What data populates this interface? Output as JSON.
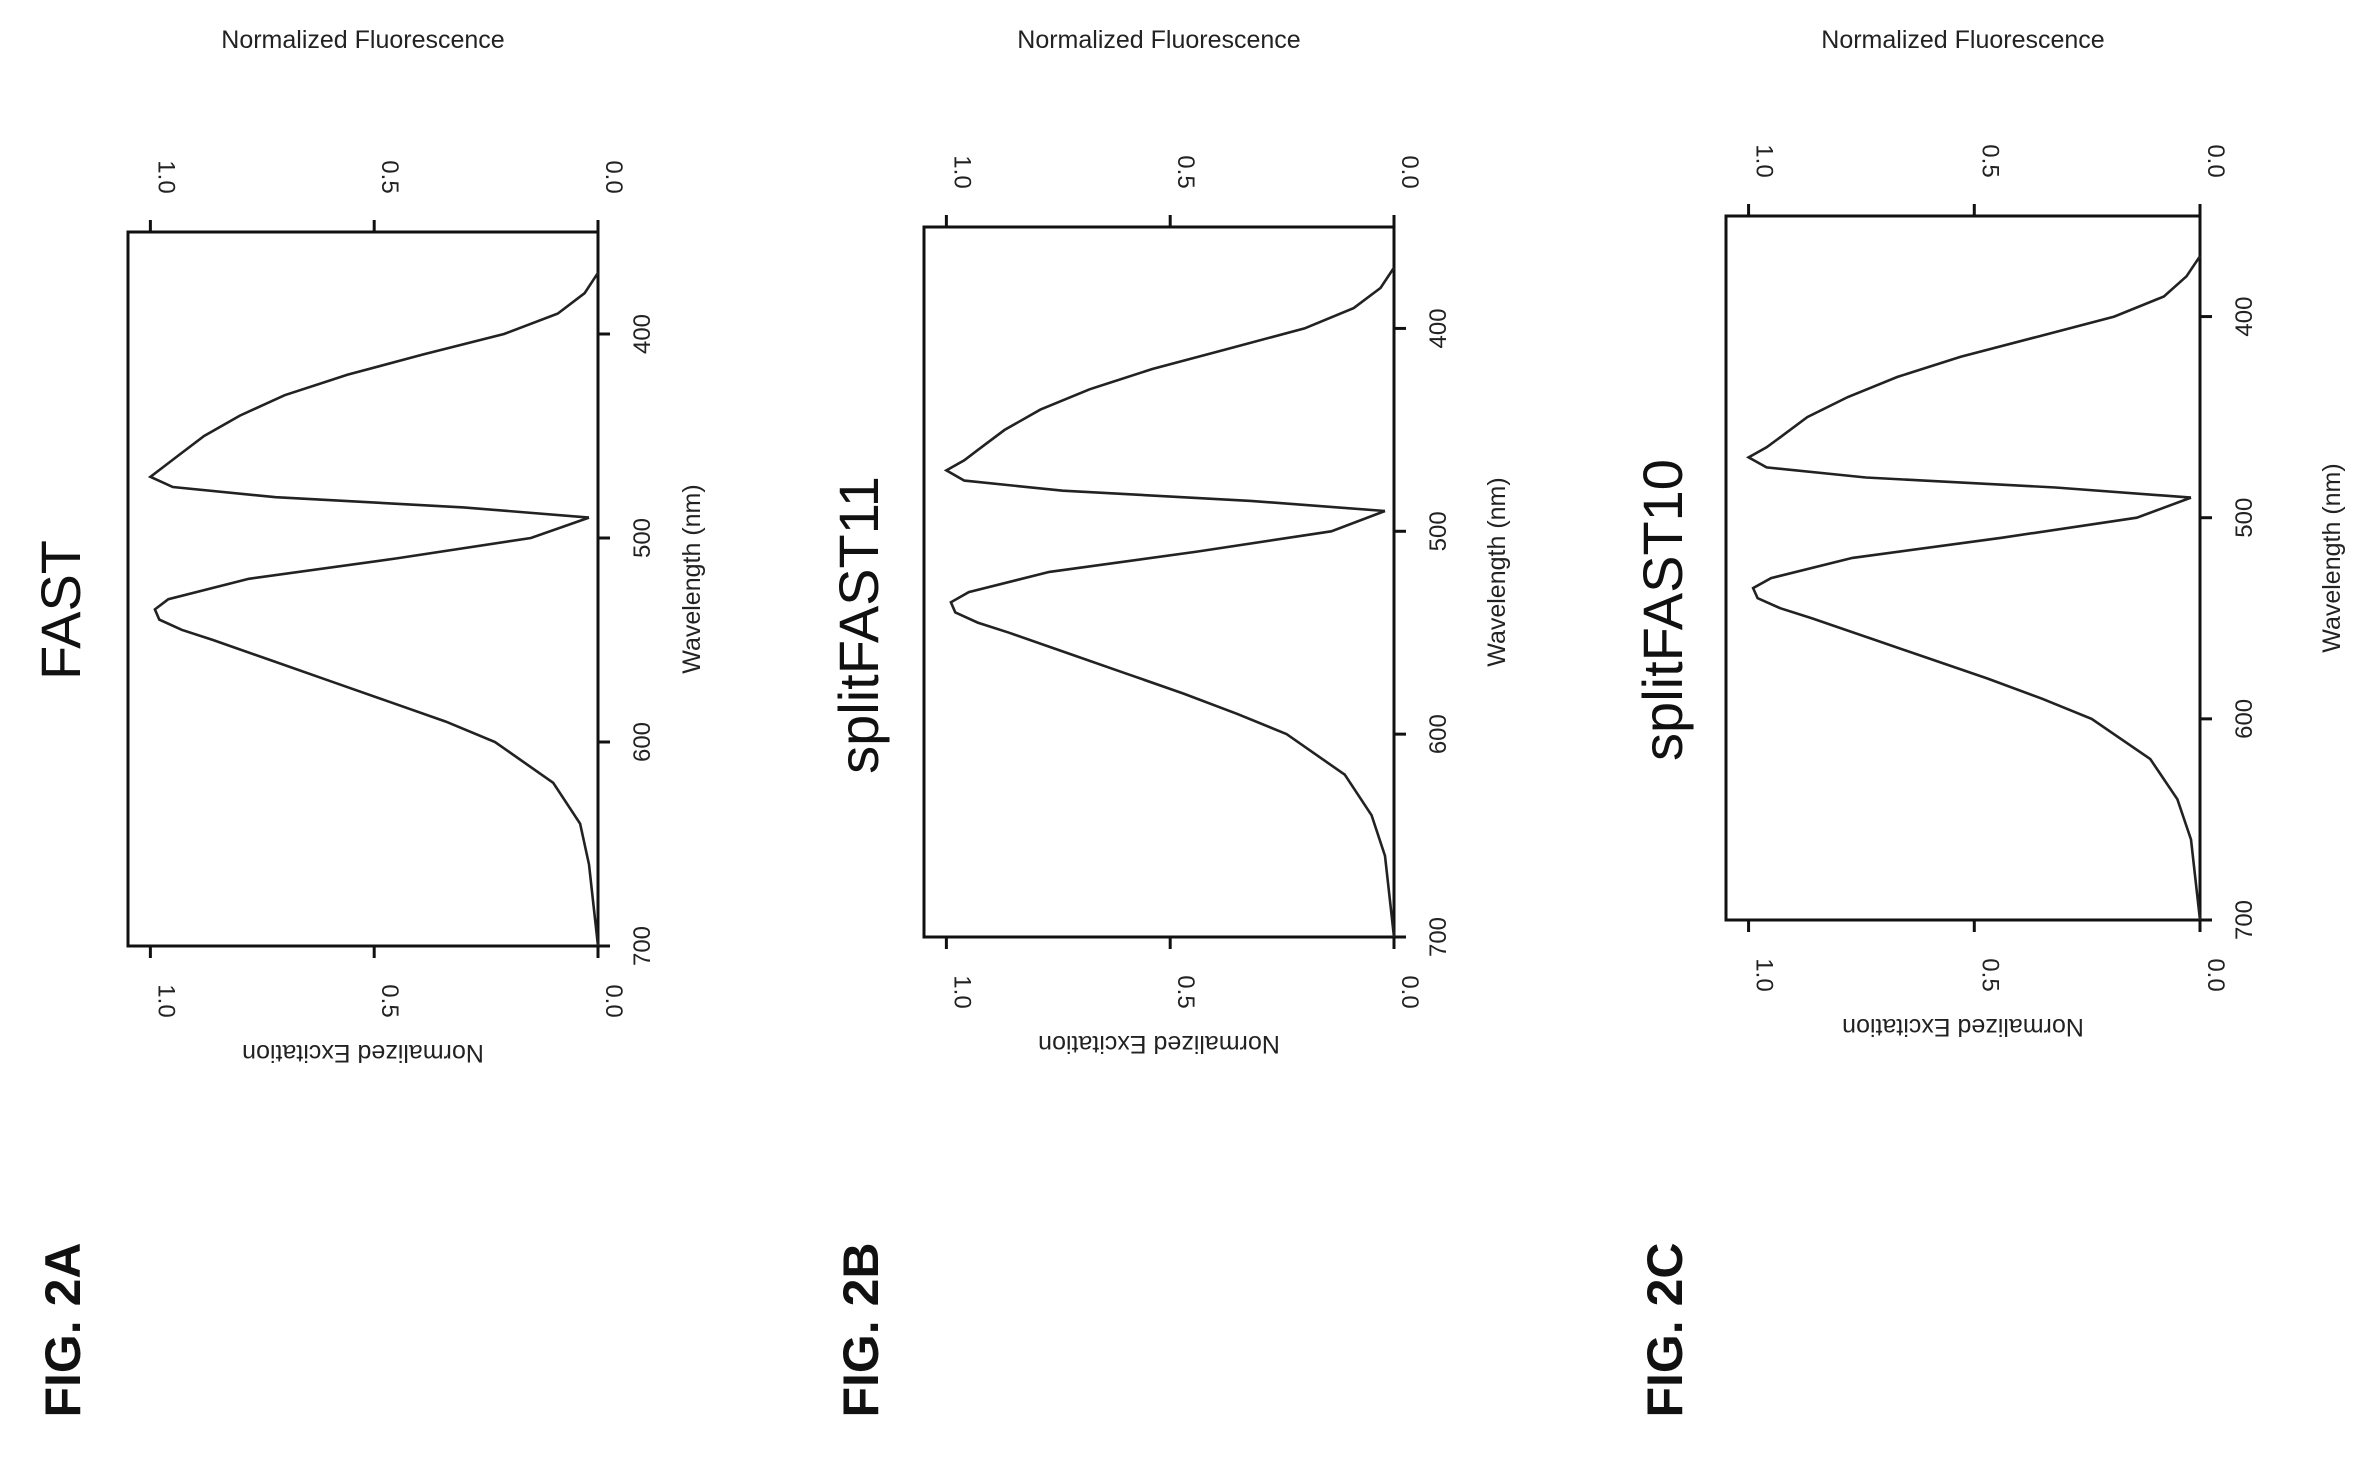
{
  "chart_data": [
    {
      "type": "line",
      "figure_label": "FIG. 2A",
      "title": "FAST",
      "xlabel": "Wavelength (nm)",
      "ylabel_excitation": "Normalized Excitation",
      "ylabel_fluorescence": "Normalized Fluorescence",
      "xlim": [
        350,
        700
      ],
      "ylim": [
        0,
        1.05
      ],
      "x_ticks": [
        "400",
        "500",
        "600",
        "700"
      ],
      "y_ticks": [
        "0.0",
        "0.5",
        "1.0"
      ],
      "series": [
        {
          "x": [
            370,
            380,
            390,
            400,
            410,
            420,
            430,
            440,
            450,
            460,
            465,
            470,
            475,
            480,
            485,
            490
          ],
          "y": [
            0.0,
            0.03,
            0.09,
            0.21,
            0.39,
            0.56,
            0.7,
            0.8,
            0.88,
            0.94,
            0.97,
            1.0,
            0.95,
            0.72,
            0.3,
            0.02
          ]
        },
        {
          "x": [
            490,
            500,
            510,
            520,
            530,
            535,
            540,
            545,
            550,
            560,
            570,
            580,
            590,
            600,
            620,
            640,
            660,
            680,
            700
          ],
          "y": [
            0.02,
            0.15,
            0.45,
            0.78,
            0.96,
            0.99,
            0.98,
            0.93,
            0.86,
            0.73,
            0.6,
            0.47,
            0.34,
            0.23,
            0.1,
            0.04,
            0.02,
            0.01,
            0.0
          ]
        }
      ]
    },
    {
      "type": "line",
      "figure_label": "FIG. 2B",
      "title": "splitFAST11",
      "xlabel": "Wavelength (nm)",
      "ylabel_excitation": "Normalized Excitation",
      "ylabel_fluorescence": "Normalized Fluorescence",
      "xlim": [
        350,
        700
      ],
      "ylim": [
        0,
        1.05
      ],
      "x_ticks": [
        "400",
        "500",
        "600",
        "700"
      ],
      "y_ticks": [
        "0.0",
        "0.5",
        "1.0"
      ],
      "series": [
        {
          "x": [
            370,
            380,
            390,
            400,
            410,
            420,
            430,
            440,
            450,
            460,
            465,
            470,
            475,
            480,
            485,
            490
          ],
          "y": [
            0.0,
            0.03,
            0.09,
            0.2,
            0.37,
            0.54,
            0.68,
            0.79,
            0.87,
            0.93,
            0.96,
            1.0,
            0.96,
            0.74,
            0.32,
            0.02
          ]
        },
        {
          "x": [
            490,
            500,
            510,
            520,
            530,
            535,
            540,
            545,
            550,
            560,
            570,
            580,
            590,
            600,
            620,
            640,
            660,
            680,
            700
          ],
          "y": [
            0.02,
            0.14,
            0.44,
            0.77,
            0.95,
            0.99,
            0.98,
            0.93,
            0.86,
            0.73,
            0.6,
            0.47,
            0.35,
            0.24,
            0.11,
            0.05,
            0.02,
            0.01,
            0.0
          ]
        }
      ]
    },
    {
      "type": "line",
      "figure_label": "FIG. 2C",
      "title": "splitFAST10",
      "xlabel": "Wavelength (nm)",
      "ylabel_excitation": "Normalized Excitation",
      "ylabel_fluorescence": "Normalized Fluorescence",
      "xlim": [
        350,
        700
      ],
      "ylim": [
        0,
        1.05
      ],
      "x_ticks": [
        "400",
        "500",
        "600",
        "700"
      ],
      "y_ticks": [
        "0.0",
        "0.5",
        "1.0"
      ],
      "series": [
        {
          "x": [
            370,
            380,
            390,
            400,
            410,
            420,
            430,
            440,
            450,
            460,
            465,
            470,
            475,
            480,
            485,
            490
          ],
          "y": [
            0.0,
            0.03,
            0.08,
            0.19,
            0.36,
            0.53,
            0.67,
            0.78,
            0.87,
            0.93,
            0.96,
            1.0,
            0.96,
            0.74,
            0.32,
            0.02
          ]
        },
        {
          "x": [
            490,
            500,
            510,
            520,
            530,
            535,
            540,
            545,
            550,
            560,
            570,
            580,
            590,
            600,
            620,
            640,
            660,
            680,
            700
          ],
          "y": [
            0.02,
            0.14,
            0.44,
            0.77,
            0.95,
            0.99,
            0.98,
            0.93,
            0.86,
            0.73,
            0.6,
            0.47,
            0.35,
            0.24,
            0.11,
            0.05,
            0.02,
            0.01,
            0.0
          ]
        }
      ]
    }
  ]
}
